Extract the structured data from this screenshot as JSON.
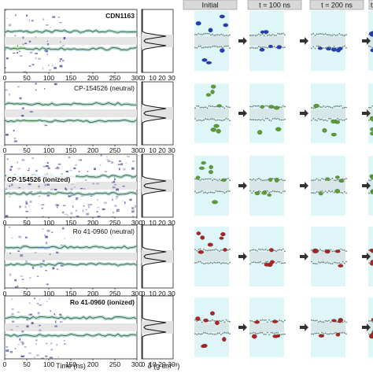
{
  "headers": [
    "Initial",
    "t = 100 ns",
    "t = 200 ns",
    "t"
  ],
  "rows": [
    {
      "label": "CDN1163",
      "label_style": "bold"
    },
    {
      "label": "CP-154526 (neutral)",
      "label_style": "normal"
    },
    {
      "label": "CP-154526 (ionized)",
      "label_style": "bold"
    },
    {
      "label": "Ro 41-0960 (neutral)",
      "label_style": "normal"
    },
    {
      "label": "Ro 41-0960 (ionized)",
      "label_style": "bold"
    }
  ],
  "time_axis": {
    "ticks": [
      "0",
      "50",
      "100",
      "150",
      "200",
      "250",
      "300"
    ],
    "title": "Time (ns)"
  },
  "density_axis": {
    "ticks": [
      "0",
      "10",
      "20",
      "30"
    ],
    "title": "δ (g cm⁻³)"
  },
  "colors": {
    "cdn1163": "#1f3fbf",
    "cp154526": "#5aa02c",
    "ro41": "#b22222",
    "box_bg": "#dff6f8",
    "membrane": "#6a7a72",
    "traj_dark": "#2a2f8c",
    "traj_light": "#9fd3e6",
    "traj_green": "#a8d46a"
  },
  "arrow_icon": "right-arrow-icon"
}
